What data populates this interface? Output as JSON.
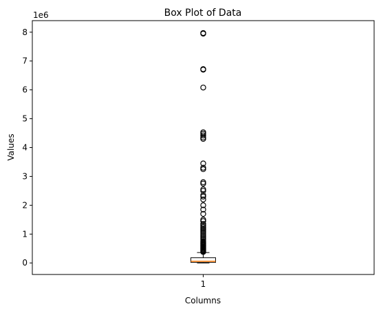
{
  "chart_data": {
    "type": "box",
    "title": "Box Plot of Data",
    "xlabel": "Columns",
    "ylabel": "Values",
    "categories": [
      "1"
    ],
    "y_offset_label": "1e6",
    "yticks": [
      0,
      1,
      2,
      3,
      4,
      5,
      6,
      7,
      8
    ],
    "ytick_labels": [
      "0",
      "1",
      "2",
      "3",
      "4",
      "5",
      "6",
      "7",
      "8"
    ],
    "ylim": [
      -0.4,
      8.4
    ],
    "box": {
      "q1": 0.02,
      "median": 0.06,
      "q3": 0.18,
      "whisker_low": 0.0,
      "whisker_high": 0.36
    },
    "outliers": [
      0.38,
      0.41,
      0.44,
      0.47,
      0.5,
      0.53,
      0.56,
      0.59,
      0.62,
      0.65,
      0.68,
      0.71,
      0.75,
      0.8,
      0.85,
      0.9,
      0.95,
      1.0,
      1.05,
      1.1,
      1.15,
      1.2,
      1.25,
      1.3,
      1.35,
      1.45,
      1.5,
      1.7,
      1.85,
      2.0,
      2.2,
      2.3,
      2.35,
      2.5,
      2.55,
      2.75,
      2.8,
      3.25,
      3.3,
      3.45,
      4.3,
      4.35,
      4.42,
      4.48,
      4.53,
      6.08,
      6.7,
      6.72,
      7.95,
      7.97
    ],
    "colors": {
      "box_edge": "#000000",
      "median": "#ff7f0e",
      "outlier_edge": "#000000"
    }
  }
}
